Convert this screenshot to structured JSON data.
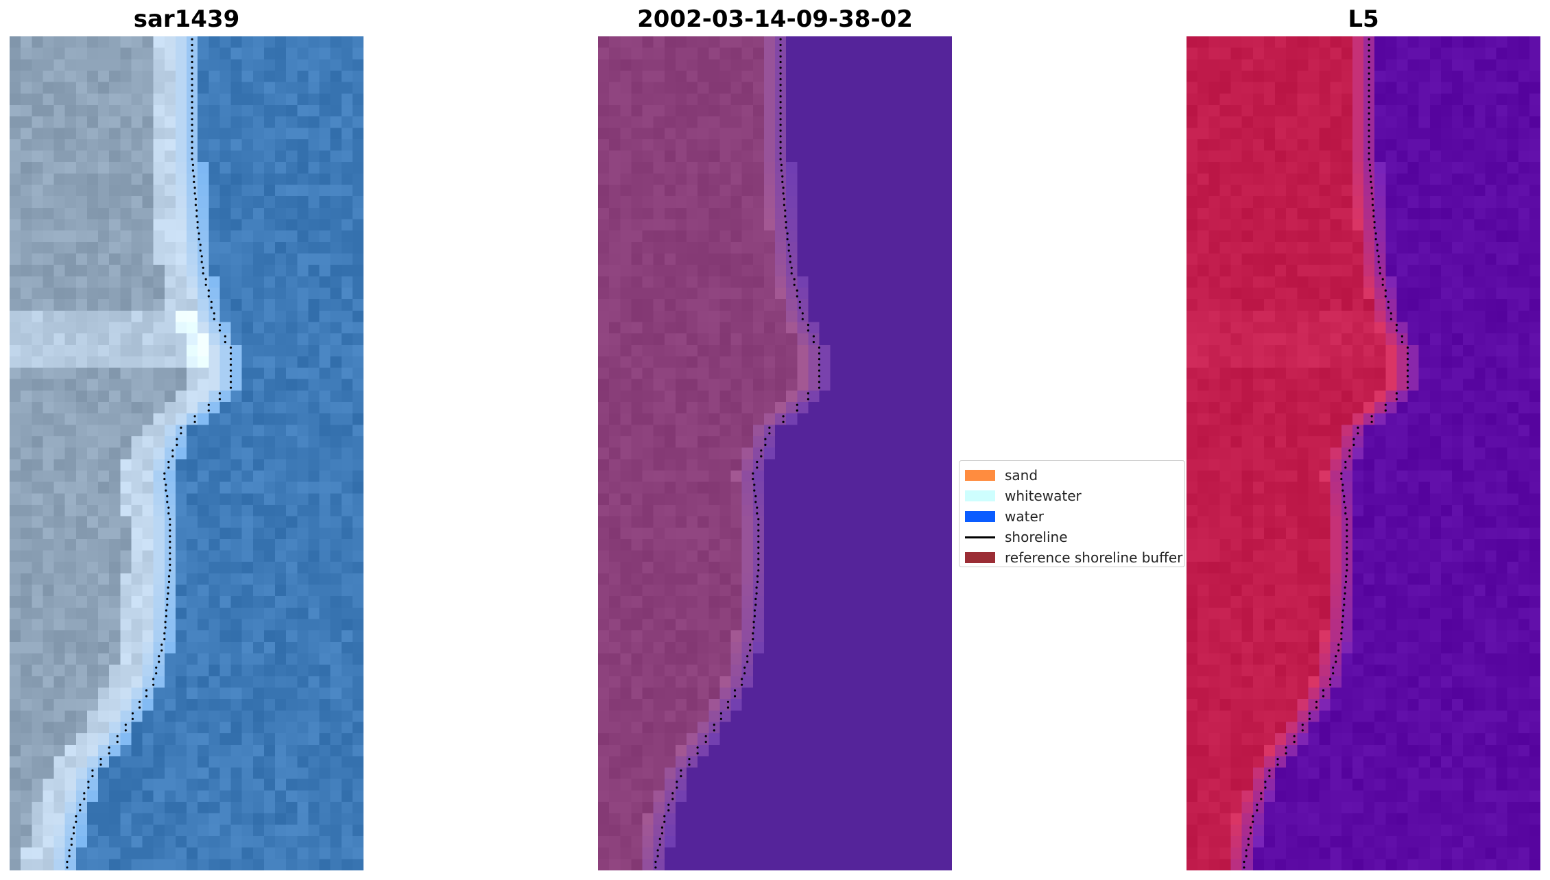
{
  "panels": [
    {
      "title": "sar1439",
      "kind": "rgb"
    },
    {
      "title": "2002-03-14-09-38-02",
      "kind": "classified"
    },
    {
      "title": "L5",
      "kind": "mndwi"
    }
  ],
  "legend": {
    "items": [
      {
        "label": "sand",
        "color": "#ff8c3f",
        "type": "patch"
      },
      {
        "label": "whitewater",
        "color": "#cefefe",
        "type": "patch"
      },
      {
        "label": "water",
        "color": "#0a5cff",
        "type": "patch"
      },
      {
        "label": "shoreline",
        "color": "#000000",
        "type": "line"
      },
      {
        "label": "reference shoreline buffer",
        "color": "#9b2d35",
        "type": "patch"
      }
    ]
  },
  "colors": {
    "sand_land_rgb": "#8ea3b8",
    "sea_rgb": "#3f7bb8",
    "land_classified": "#8a3f7a",
    "water_classified": "#55249a",
    "land_index": "#c11c4c",
    "water_index": "#5c0aa4",
    "shoreline_dots": "#000000"
  }
}
